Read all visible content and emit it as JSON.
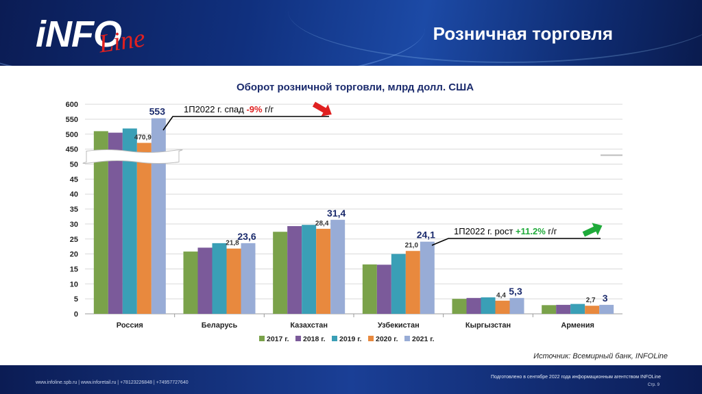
{
  "header": {
    "logo_main": "iNFO",
    "logo_script": "Line",
    "title": "Розничная торговля"
  },
  "chart_data": {
    "type": "bar",
    "title": "Оборот розничной торговли, млрд долл. США",
    "categories": [
      "Россия",
      "Беларусь",
      "Казахстан",
      "Узбекистан",
      "Кыргызстан",
      "Армения"
    ],
    "series": [
      {
        "name": "2017 г.",
        "color": "#7aa24a",
        "values": [
          510,
          20.8,
          27.4,
          16.5,
          5.0,
          2.9
        ]
      },
      {
        "name": "2018 г.",
        "color": "#7b5a9a",
        "values": [
          505,
          22.1,
          29.3,
          16.4,
          5.3,
          3.0
        ]
      },
      {
        "name": "2019 г.",
        "color": "#3a9fb6",
        "values": [
          519,
          23.6,
          29.7,
          20.0,
          5.5,
          3.3
        ]
      },
      {
        "name": "2020 г.",
        "color": "#e8893e",
        "values": [
          470.9,
          21.8,
          28.4,
          21.0,
          4.4,
          2.7
        ]
      },
      {
        "name": "2021 г.",
        "color": "#98acd6",
        "values": [
          553,
          23.6,
          31.4,
          24.1,
          5.3,
          3.0
        ]
      }
    ],
    "y_ticks": [
      "0",
      "5",
      "10",
      "15",
      "20",
      "25",
      "30",
      "35",
      "40",
      "45",
      "50",
      "450",
      "500",
      "550",
      "600"
    ],
    "y_axis_note": "broken axis: 0-50 linear, then 450-600",
    "data_labels": [
      {
        "category": 0,
        "series": 3,
        "text": "470,9",
        "big": false
      },
      {
        "category": 0,
        "series": 4,
        "text": "553",
        "big": true
      },
      {
        "category": 1,
        "series": 3,
        "text": "21,8",
        "big": false
      },
      {
        "category": 1,
        "series": 4,
        "text": "23,6",
        "big": true
      },
      {
        "category": 2,
        "series": 3,
        "text": "28,4",
        "big": false
      },
      {
        "category": 2,
        "series": 4,
        "text": "31,4",
        "big": true
      },
      {
        "category": 3,
        "series": 3,
        "text": "21,0",
        "big": false
      },
      {
        "category": 3,
        "series": 4,
        "text": "24,1",
        "big": true
      },
      {
        "category": 4,
        "series": 3,
        "text": "4,4",
        "big": false
      },
      {
        "category": 4,
        "series": 4,
        "text": "5,3",
        "big": true
      },
      {
        "category": 5,
        "series": 3,
        "text": "2,7",
        "big": false
      },
      {
        "category": 5,
        "series": 4,
        "text": "3",
        "big": true
      }
    ],
    "legend_position": "bottom",
    "grid": true
  },
  "annotations": {
    "decline": {
      "prefix": "1П2022 г. спад ",
      "value": "-9%",
      "suffix": " г/г",
      "color": "#e02020"
    },
    "growth": {
      "prefix": "1П2022 г. рост ",
      "value": "+11.2%",
      "suffix": " г/г",
      "color": "#1faa3a"
    }
  },
  "source": "Источник: Всемирный банк, INFOLine",
  "footer": {
    "links": "www.infoline.spb.ru | www.inforetail.ru | +78123226848 | +74957727640",
    "prepared": "Подготовлено в сентябре 2022 года информационным агентством INFOLine",
    "page": "Стр. 9"
  }
}
